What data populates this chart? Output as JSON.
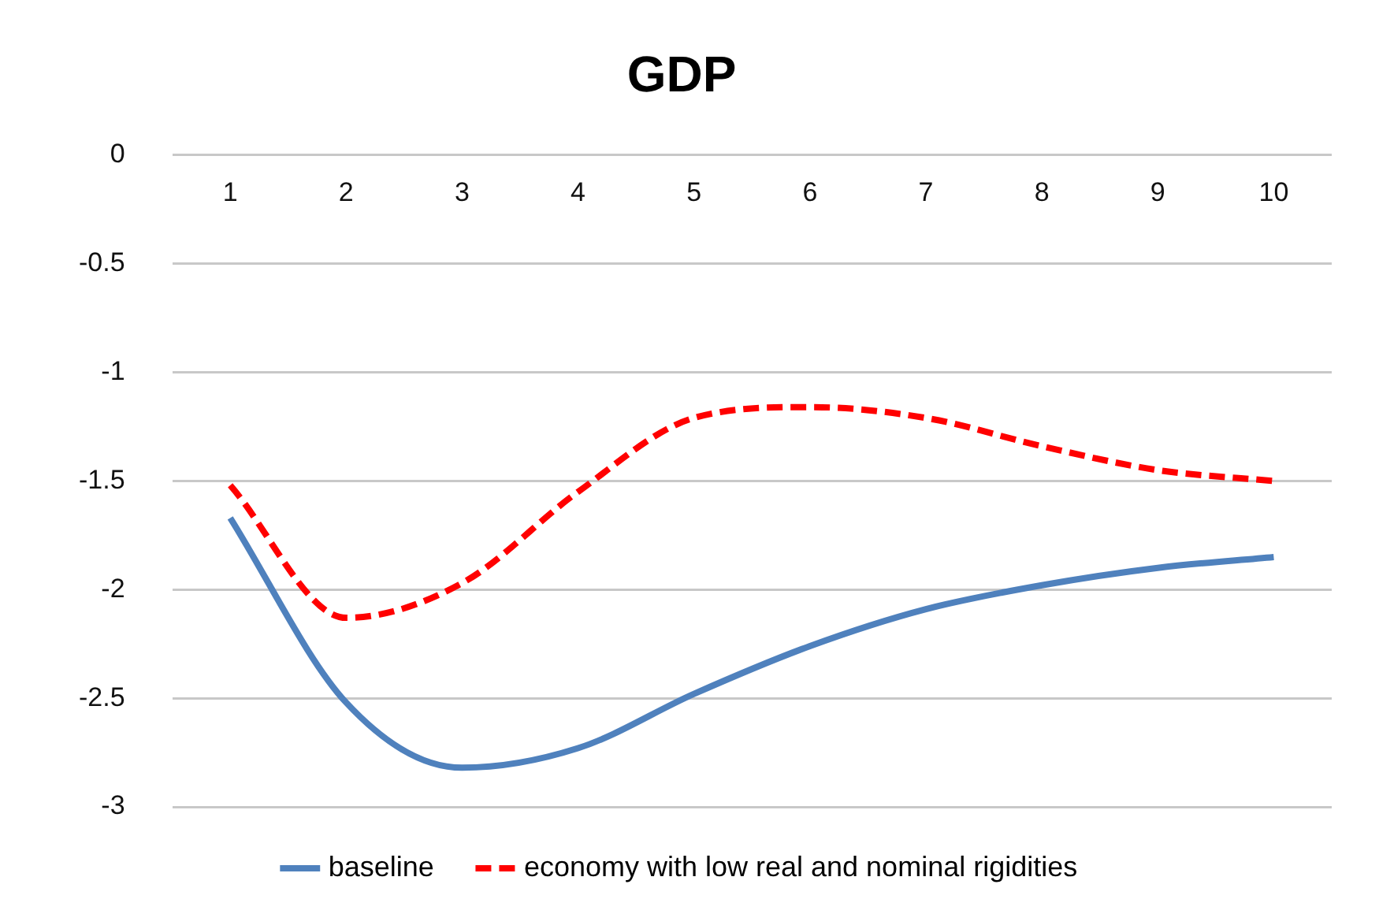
{
  "chart_data": {
    "type": "line",
    "title": "GDP",
    "categories": [
      "1",
      "2",
      "3",
      "4",
      "5",
      "6",
      "7",
      "8",
      "9",
      "10"
    ],
    "series": [
      {
        "name": "baseline",
        "color": "#4f81bd",
        "line_style": "solid",
        "values": [
          -1.67,
          -2.52,
          -2.82,
          -2.73,
          -2.48,
          -2.26,
          -2.09,
          -1.98,
          -1.9,
          -1.85
        ]
      },
      {
        "name": "economy with low real and nominal rigidities",
        "color": "#ff0000",
        "line_style": "dashed",
        "values": [
          -1.52,
          -2.13,
          -1.97,
          -1.55,
          -1.21,
          -1.16,
          -1.21,
          -1.34,
          -1.45,
          -1.5
        ]
      }
    ],
    "ylim": [
      -3,
      0
    ],
    "yticks": [
      0,
      -0.5,
      -1,
      -1.5,
      -2,
      -2.5,
      -3
    ],
    "grid": "y",
    "legend": "bottom",
    "marker": "none"
  }
}
